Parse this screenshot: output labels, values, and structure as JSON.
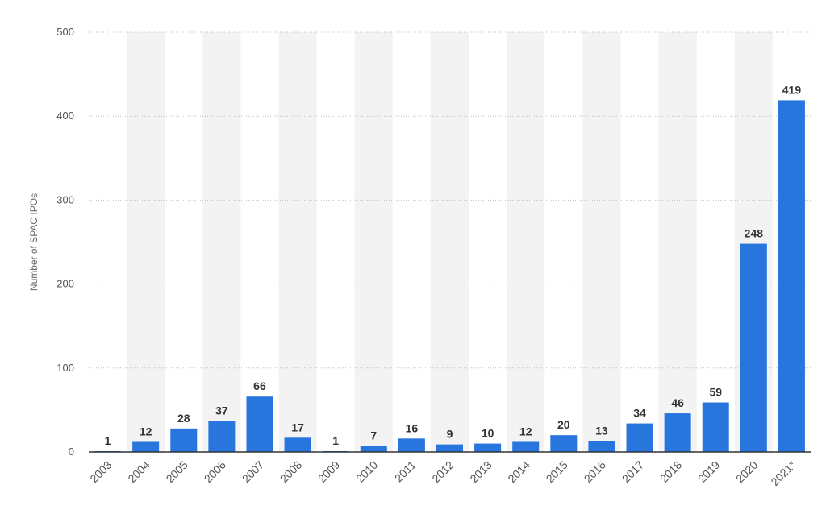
{
  "colors": {
    "bar": "#2876dd",
    "band": "#f3f3f3",
    "grid": "#bfbfbf",
    "axis": "#333333"
  },
  "chart_data": {
    "type": "bar",
    "categories": [
      "2003",
      "2004",
      "2005",
      "2006",
      "2007",
      "2008",
      "2009",
      "2010",
      "2011",
      "2012",
      "2013",
      "2014",
      "2015",
      "2016",
      "2017",
      "2018",
      "2019",
      "2020",
      "2021*"
    ],
    "values": [
      1,
      12,
      28,
      37,
      66,
      17,
      1,
      7,
      16,
      9,
      10,
      12,
      20,
      13,
      34,
      46,
      59,
      248,
      419
    ],
    "data_labels": [
      "1",
      "12",
      "28",
      "37",
      "66",
      "17",
      "1",
      "7",
      "16",
      "9",
      "10",
      "12",
      "20",
      "13",
      "34",
      "46",
      "59",
      "248",
      "419"
    ],
    "ylabel": "Number of SPAC IPOs",
    "ylim": [
      0,
      500
    ],
    "yticks": [
      0,
      100,
      200,
      300,
      400,
      500
    ],
    "ytick_labels": [
      "0",
      "100",
      "200",
      "300",
      "400",
      "500"
    ],
    "grid": true,
    "grid_style": "dotted"
  }
}
